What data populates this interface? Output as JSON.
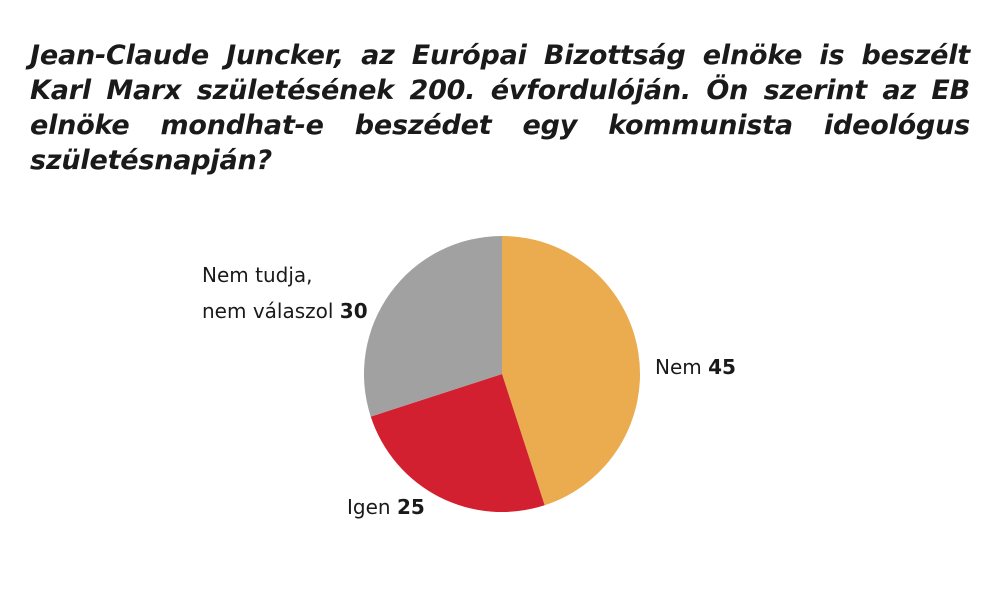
{
  "chart_data": {
    "type": "pie",
    "title": "Jean-Claude Juncker, az Európai Bizottság elnöke is beszélt Karl Marx születésének 200. évfordulóján. Ön szerint az EB elnöke mondhat-e beszédet egy kommunista ideológus születésnapján?",
    "slices": [
      {
        "label": "Nem",
        "value": 45,
        "value_text": "45",
        "color": "#EAAC4E"
      },
      {
        "label": "Igen",
        "value": 25,
        "value_text": "25",
        "color": "#D22030"
      },
      {
        "label_lines": [
          "Nem tudja,",
          "nem válaszol"
        ],
        "value": 30,
        "value_text": "30",
        "color": "#A1A1A1"
      }
    ]
  }
}
